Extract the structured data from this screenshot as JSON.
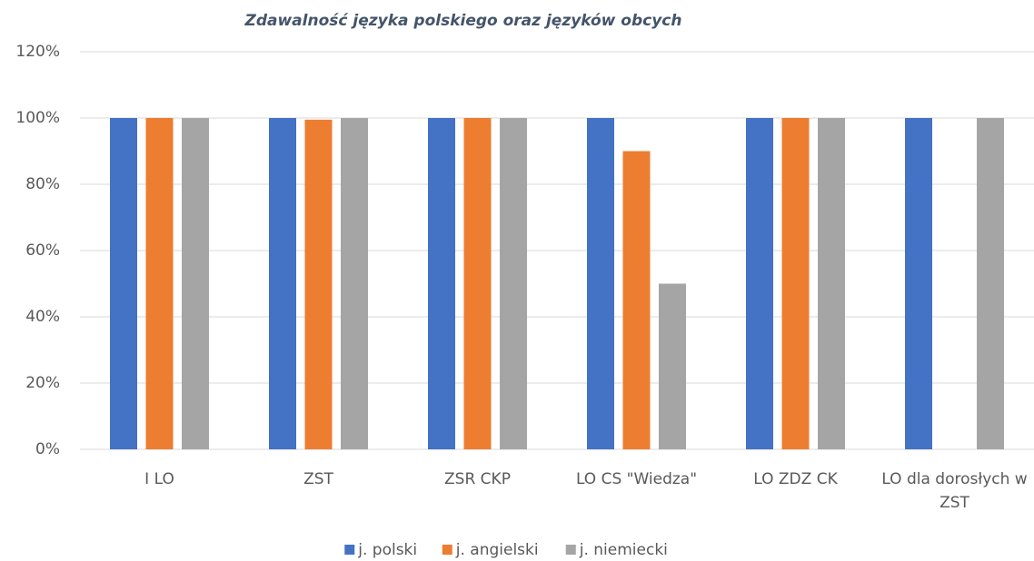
{
  "chart_data": {
    "type": "bar",
    "title": "Zdawalność języka polskiego oraz języków obcych",
    "categories": [
      "I LO",
      "ZST",
      "ZSR CKP",
      "LO CS \"Wiedza\"",
      "LO ZDZ CK",
      "LO dla dorosłych w ZST"
    ],
    "series": [
      {
        "name": "j. polski",
        "color": "#4472c4",
        "values": [
          100,
          100,
          100,
          100,
          100,
          100
        ]
      },
      {
        "name": "j. angielski",
        "color": "#ed7d31",
        "values": [
          100,
          99.5,
          100,
          90,
          100,
          null
        ]
      },
      {
        "name": "j. niemiecki",
        "color": "#a5a5a5",
        "values": [
          100,
          100,
          100,
          50,
          100,
          100
        ]
      }
    ],
    "ylim": [
      0,
      120
    ],
    "yticks": [
      {
        "value": 0,
        "label": "0%"
      },
      {
        "value": 20,
        "label": "20%"
      },
      {
        "value": 40,
        "label": "40%"
      },
      {
        "value": 60,
        "label": "60%"
      },
      {
        "value": 80,
        "label": "80%"
      },
      {
        "value": 100,
        "label": "100%"
      },
      {
        "value": 120,
        "label": "120%"
      }
    ],
    "grid": true,
    "legend": "bottom"
  }
}
